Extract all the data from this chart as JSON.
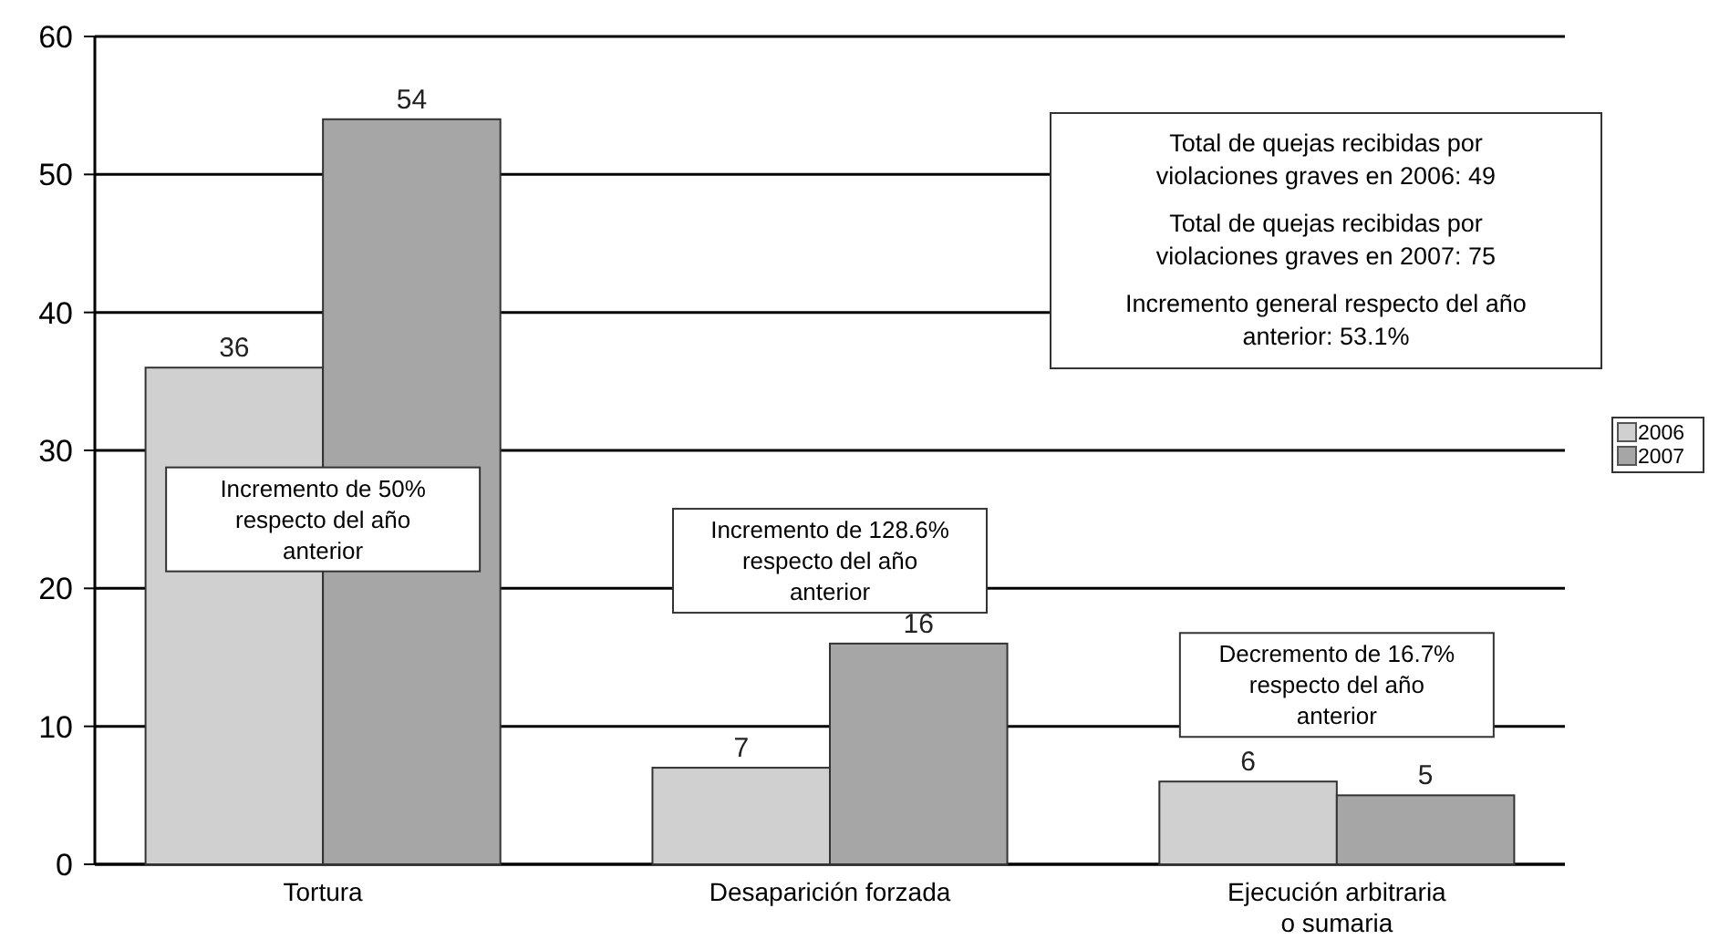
{
  "chart_data": {
    "type": "bar",
    "categories": [
      "Tortura",
      "Desaparición forzada",
      "Ejecución arbitraria o sumaria"
    ],
    "series": [
      {
        "name": "2006",
        "color": "#d0d0d0",
        "values": [
          36,
          7,
          6
        ]
      },
      {
        "name": "2007",
        "color": "#a6a6a6",
        "values": [
          54,
          16,
          5
        ]
      }
    ],
    "ylim": [
      0,
      60
    ],
    "yticks": [
      0,
      10,
      20,
      30,
      40,
      50,
      60
    ],
    "grid": "y",
    "legend": "right",
    "data_labels": true,
    "annotations": [
      "Total de quejas recibidas por violaciones graves en 2006: 49",
      "Total de quejas recibidas por violaciones graves en 2007: 75",
      "Incremento general respecto del año anterior: 53.1%",
      "Incremento de 50% respecto del año anterior",
      "Incremento de 128.6% respecto del año anterior",
      "Decremento de 16.7% respecto del año anterior"
    ]
  }
}
